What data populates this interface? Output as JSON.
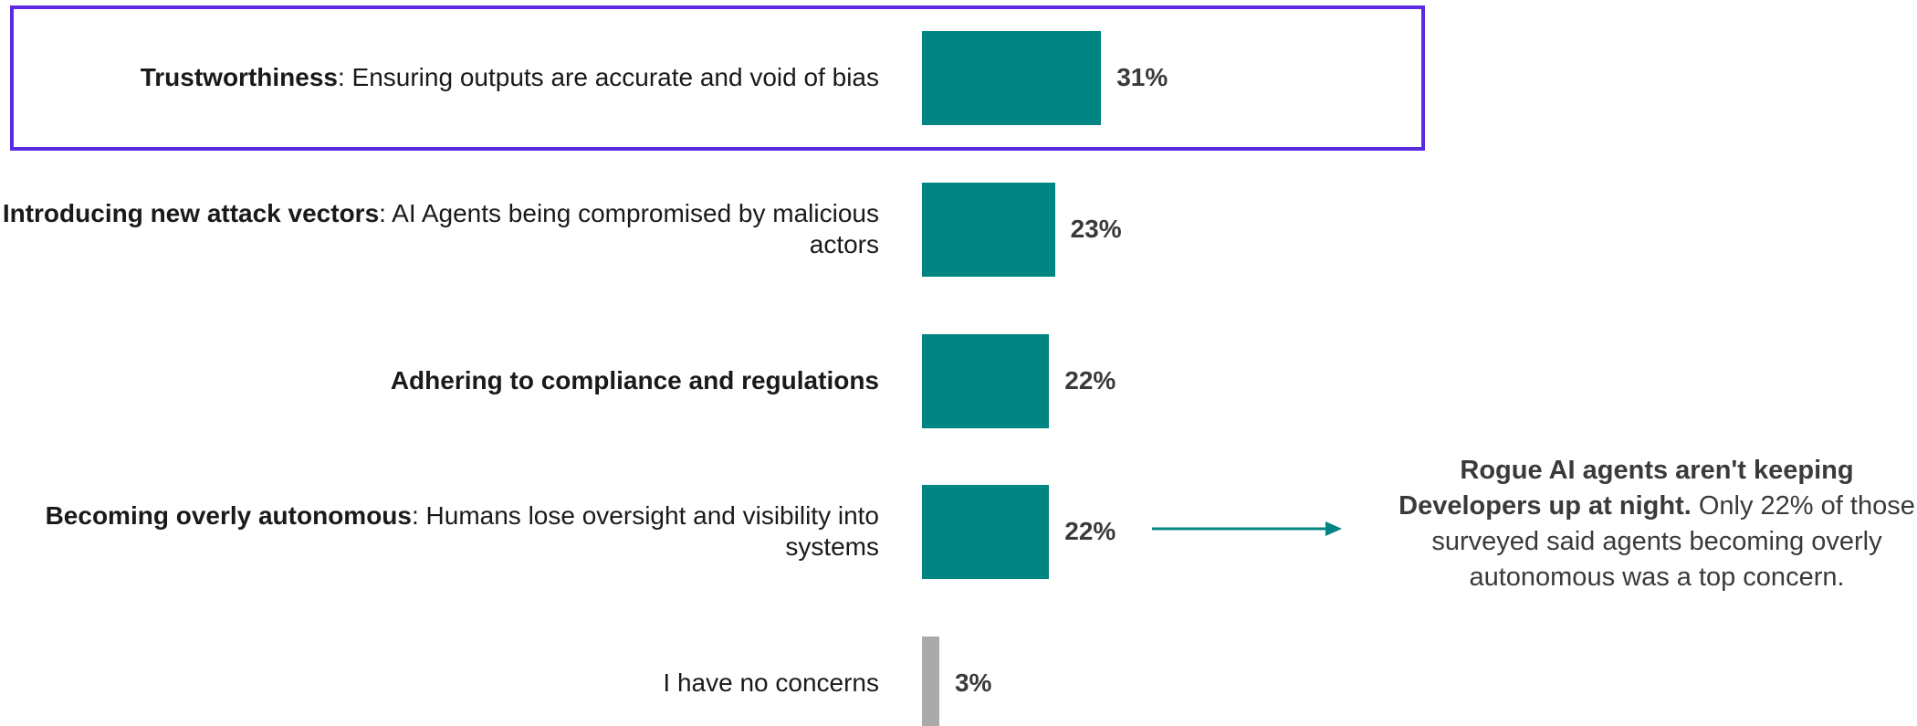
{
  "colors": {
    "accent_bar": "#008582",
    "neutral_bar": "#aaaaaa",
    "highlight_border": "#5a2be0",
    "arrow": "#008582"
  },
  "chart_data": {
    "type": "bar",
    "orientation": "horizontal",
    "title": "",
    "xlabel": "",
    "ylabel": "",
    "xlim": [
      0,
      100
    ],
    "grid": false,
    "highlighted_index": 0,
    "categories": [
      {
        "bold": "Trustworthiness",
        "rest": ": Ensuring outputs are accurate and void of bias",
        "value": 31,
        "value_label": "31%",
        "color": "#008582"
      },
      {
        "bold": "Introducing new attack vectors",
        "rest": ": AI Agents being compromised by malicious actors",
        "value": 23,
        "value_label": "23%",
        "color": "#008582"
      },
      {
        "bold": "Adhering to compliance and regulations",
        "rest": "",
        "value": 22,
        "value_label": "22%",
        "color": "#008582"
      },
      {
        "bold": "Becoming overly autonomous",
        "rest": ": Humans lose oversight and visibility into systems",
        "value": 22,
        "value_label": "22%",
        "color": "#008582"
      },
      {
        "bold": "",
        "rest": "I have no concerns",
        "value": 3,
        "value_label": "3%",
        "color": "#aaaaaa"
      }
    ],
    "annotation": {
      "target_index": 3,
      "bold": "Rogue AI agents aren't keeping Developers up at night.",
      "rest": " Only 22% of those surveyed said agents becoming overly autonomous was a top concern."
    }
  }
}
